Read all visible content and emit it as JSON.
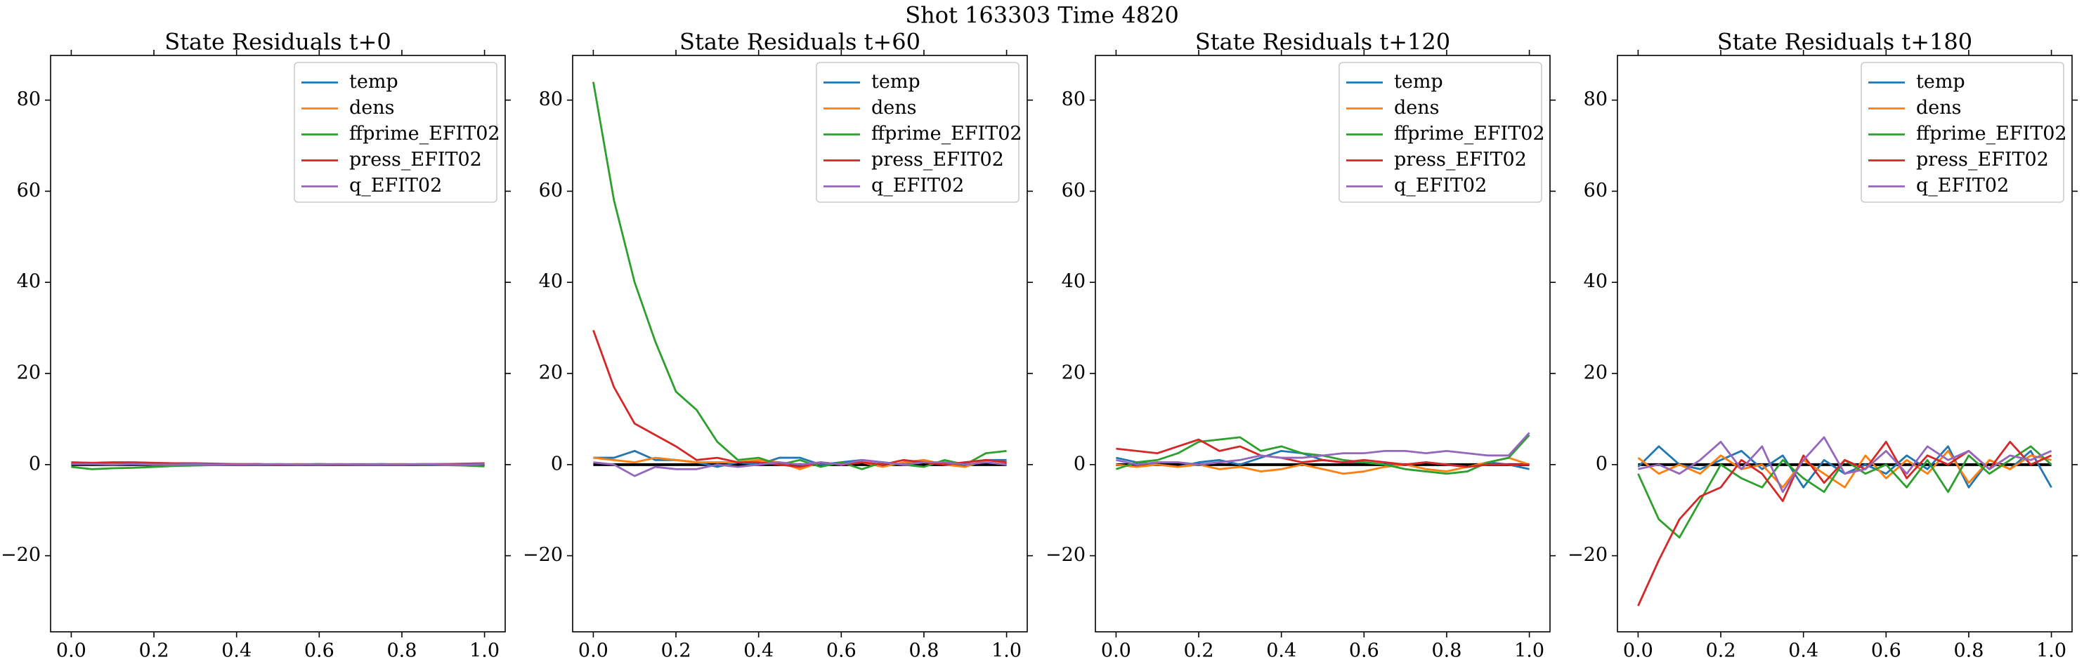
{
  "suptitle": "Shot 163303   Time 4820",
  "chart_data": [
    {
      "type": "line",
      "title": "State Residuals t+0",
      "x": [
        0,
        0.05,
        0.1,
        0.15,
        0.2,
        0.25,
        0.3,
        0.35,
        0.4,
        0.45,
        0.5,
        0.55,
        0.6,
        0.65,
        0.7,
        0.75,
        0.8,
        0.85,
        0.9,
        0.95,
        1
      ],
      "xlim": [
        -0.05,
        1.05
      ],
      "ylim": [
        -36.7,
        89.8
      ],
      "xticks": [
        {
          "value": 0,
          "label": "0.0"
        },
        0.2,
        0.4,
        0.6,
        0.8,
        {
          "value": 1,
          "label": "1.0"
        }
      ],
      "yticks": [
        {
          "value": -20,
          "label": "−20"
        },
        0,
        20,
        40,
        60,
        80
      ],
      "hline": 0,
      "legend": "upper right",
      "series": [
        {
          "name": "temp",
          "color": "#1f77b4",
          "values": [
            0.3,
            0.2,
            0.1,
            0.2,
            0.1,
            0,
            0.1,
            0.1,
            0,
            0.1,
            0,
            0,
            0.1,
            0,
            0,
            0.1,
            0,
            0,
            0.1,
            0,
            0.1
          ]
        },
        {
          "name": "dens",
          "color": "#ff7f0e",
          "values": [
            0.2,
            0.1,
            0.2,
            0.1,
            0,
            0.1,
            0,
            0,
            0.1,
            0,
            0,
            0.1,
            0,
            0,
            0,
            0,
            0.1,
            0,
            0,
            0.1,
            0.2
          ]
        },
        {
          "name": "ffprime_EFIT02",
          "color": "#2ca02c",
          "values": [
            -0.5,
            -1,
            -0.8,
            -0.7,
            -0.5,
            -0.3,
            -0.2,
            -0.1,
            0,
            0,
            0,
            0,
            0.1,
            0,
            0,
            0,
            0,
            0,
            -0.1,
            -0.2,
            -0.4
          ]
        },
        {
          "name": "press_EFIT02",
          "color": "#d62728",
          "values": [
            0.5,
            0.4,
            0.5,
            0.5,
            0.4,
            0.3,
            0.3,
            0.2,
            0.1,
            0.1,
            0,
            0,
            0,
            0,
            0,
            0,
            0,
            0.1,
            0.1,
            0.2,
            0.3
          ]
        },
        {
          "name": "q_EFIT02",
          "color": "#9467bd",
          "values": [
            0.1,
            0.1,
            0,
            0.1,
            0,
            0,
            0.1,
            0,
            0,
            0,
            0.1,
            0,
            0,
            0.1,
            0,
            0,
            0,
            0.1,
            0,
            0,
            0.1
          ]
        }
      ]
    },
    {
      "type": "line",
      "title": "State Residuals t+60",
      "x": [
        0,
        0.05,
        0.1,
        0.15,
        0.2,
        0.25,
        0.3,
        0.35,
        0.4,
        0.45,
        0.5,
        0.55,
        0.6,
        0.65,
        0.7,
        0.75,
        0.8,
        0.85,
        0.9,
        0.95,
        1
      ],
      "xlim": [
        -0.05,
        1.05
      ],
      "ylim": [
        -36.7,
        89.8
      ],
      "xticks": [
        {
          "value": 0,
          "label": "0.0"
        },
        0.2,
        0.4,
        0.6,
        0.8,
        {
          "value": 1,
          "label": "1.0"
        }
      ],
      "yticks": [
        {
          "value": -20,
          "label": "−20"
        },
        0,
        20,
        40,
        60,
        80
      ],
      "hline": 0,
      "legend": "upper right",
      "series": [
        {
          "name": "temp",
          "color": "#1f77b4",
          "values": [
            1.5,
            1.5,
            3,
            1,
            1,
            0.5,
            -0.5,
            0.5,
            0,
            1.5,
            1.5,
            0,
            0.5,
            1,
            0.5,
            0,
            1,
            0,
            0.5,
            1,
            1
          ]
        },
        {
          "name": "dens",
          "color": "#ff7f0e",
          "values": [
            1.5,
            1,
            0.5,
            1.5,
            1,
            0.5,
            0.5,
            0.5,
            1,
            0.5,
            -1,
            0.5,
            0,
            0.5,
            -0.5,
            0.5,
            1,
            0,
            -0.5,
            1,
            0.5
          ]
        },
        {
          "name": "ffprime_EFIT02",
          "color": "#2ca02c",
          "values": [
            84,
            58,
            40,
            27,
            16,
            12,
            5,
            1,
            1.5,
            0,
            1,
            -0.5,
            0.5,
            -1,
            0.5,
            0,
            -0.5,
            1,
            0,
            2.5,
            3
          ]
        },
        {
          "name": "press_EFIT02",
          "color": "#d62728",
          "values": [
            29.5,
            17,
            9,
            6.5,
            4,
            1,
            1.5,
            0.5,
            0.5,
            0,
            -0.5,
            0.5,
            0,
            0.5,
            0,
            1,
            0.5,
            0,
            0.5,
            1,
            0.5
          ]
        },
        {
          "name": "q_EFIT02",
          "color": "#9467bd",
          "values": [
            0.5,
            0,
            -2.5,
            -0.5,
            -1,
            -1,
            0,
            -0.5,
            0,
            0.5,
            0,
            0.5,
            0,
            1,
            0.5,
            0,
            0.5,
            0.5,
            0,
            0.5,
            0
          ]
        }
      ]
    },
    {
      "type": "line",
      "title": "State Residuals t+120",
      "x": [
        0,
        0.05,
        0.1,
        0.15,
        0.2,
        0.25,
        0.3,
        0.35,
        0.4,
        0.45,
        0.5,
        0.55,
        0.6,
        0.65,
        0.7,
        0.75,
        0.8,
        0.85,
        0.9,
        0.95,
        1
      ],
      "xlim": [
        -0.05,
        1.05
      ],
      "ylim": [
        -36.7,
        89.8
      ],
      "xticks": [
        {
          "value": 0,
          "label": "0.0"
        },
        0.2,
        0.4,
        0.6,
        0.8,
        {
          "value": 1,
          "label": "1.0"
        }
      ],
      "yticks": [
        {
          "value": -20,
          "label": "−20"
        },
        0,
        20,
        40,
        60,
        80
      ],
      "hline": 0,
      "legend": "upper right",
      "series": [
        {
          "name": "temp",
          "color": "#1f77b4",
          "values": [
            1.5,
            0.5,
            0,
            -0.5,
            0.5,
            1,
            0,
            1.5,
            3,
            2.5,
            1,
            0.5,
            0.5,
            0,
            0,
            0.5,
            0,
            -0.5,
            0.5,
            0,
            -1
          ]
        },
        {
          "name": "dens",
          "color": "#ff7f0e",
          "values": [
            0,
            -0.5,
            0,
            -0.5,
            0,
            -1,
            -0.5,
            -1.5,
            -1,
            0,
            -1,
            -2,
            -1.5,
            -0.5,
            0,
            -1,
            -1.5,
            -0.5,
            0.5,
            1.5,
            0
          ]
        },
        {
          "name": "ffprime_EFIT02",
          "color": "#2ca02c",
          "values": [
            -1,
            0.5,
            1,
            2.5,
            5,
            5.5,
            6,
            3,
            4,
            2.5,
            2,
            1,
            0.5,
            0,
            -1,
            -1.5,
            -2,
            -1.5,
            0.5,
            1.5,
            6.5
          ]
        },
        {
          "name": "press_EFIT02",
          "color": "#d62728",
          "values": [
            3.5,
            3,
            2.5,
            4,
            5.5,
            3,
            4,
            2,
            1.5,
            0.5,
            1,
            0.5,
            1,
            0.5,
            0,
            0.5,
            0,
            -0.5,
            0,
            0,
            0
          ]
        },
        {
          "name": "q_EFIT02",
          "color": "#9467bd",
          "values": [
            1,
            0,
            0.5,
            0.5,
            0,
            0.5,
            1,
            2,
            1.5,
            1.5,
            2,
            2.5,
            2.5,
            3,
            3,
            2.5,
            3,
            2.5,
            2,
            2,
            7
          ]
        }
      ]
    },
    {
      "type": "line",
      "title": "State Residuals t+180",
      "x": [
        0,
        0.05,
        0.1,
        0.15,
        0.2,
        0.25,
        0.3,
        0.35,
        0.4,
        0.45,
        0.5,
        0.55,
        0.6,
        0.65,
        0.7,
        0.75,
        0.8,
        0.85,
        0.9,
        0.95,
        1
      ],
      "xlim": [
        -0.05,
        1.05
      ],
      "ylim": [
        -36.7,
        89.8
      ],
      "xticks": [
        {
          "value": 0,
          "label": "0.0"
        },
        0.2,
        0.4,
        0.6,
        0.8,
        {
          "value": 1,
          "label": "1.0"
        }
      ],
      "yticks": [
        {
          "value": -20,
          "label": "−20"
        },
        0,
        20,
        40,
        60,
        80
      ],
      "hline": 0,
      "legend": "upper right",
      "series": [
        {
          "name": "temp",
          "color": "#1f77b4",
          "values": [
            -0.5,
            4,
            0,
            -1,
            1,
            3,
            -1,
            2,
            -5,
            1,
            -2,
            0,
            -2,
            2,
            -1,
            4,
            -5,
            1,
            -1,
            3,
            -5
          ]
        },
        {
          "name": "dens",
          "color": "#ff7f0e",
          "values": [
            1.5,
            -2,
            0,
            -2,
            2,
            -1,
            0,
            -5,
            1,
            -2,
            -5,
            2,
            -3,
            1,
            -2,
            3,
            -4,
            1,
            -1,
            2,
            1
          ]
        },
        {
          "name": "ffprime_EFIT02",
          "color": "#2ca02c",
          "values": [
            -2,
            -12,
            -16,
            -8,
            0,
            -3,
            -5,
            1,
            -3,
            -6,
            1,
            -2,
            0,
            -5,
            1,
            -6,
            2,
            -2,
            1,
            4,
            0
          ]
        },
        {
          "name": "press_EFIT02",
          "color": "#d62728",
          "values": [
            -31,
            -21,
            -12,
            -7,
            -5,
            1,
            -2,
            -8,
            2,
            -4,
            1,
            -1,
            5,
            -3,
            2,
            0,
            3,
            -1,
            5,
            0,
            2
          ]
        },
        {
          "name": "q_EFIT02",
          "color": "#9467bd",
          "values": [
            -1,
            0,
            -2,
            1,
            5,
            -1,
            4,
            -6,
            1,
            6,
            -2,
            -1,
            3,
            -2,
            4,
            1,
            3,
            -1,
            2,
            1,
            3
          ]
        }
      ]
    }
  ]
}
